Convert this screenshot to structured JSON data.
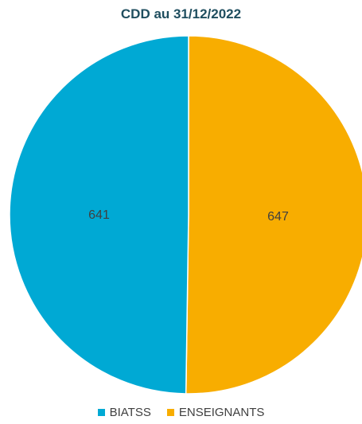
{
  "chart_data": {
    "type": "pie",
    "title": "CDD au 31/12/2022",
    "categories": [
      "BIATSS",
      "ENSEIGNANTS"
    ],
    "values": [
      641,
      647
    ],
    "colors": [
      "#00a9d4",
      "#f8ad00"
    ],
    "data_labels": [
      "641",
      "647"
    ],
    "legend_position": "bottom"
  }
}
